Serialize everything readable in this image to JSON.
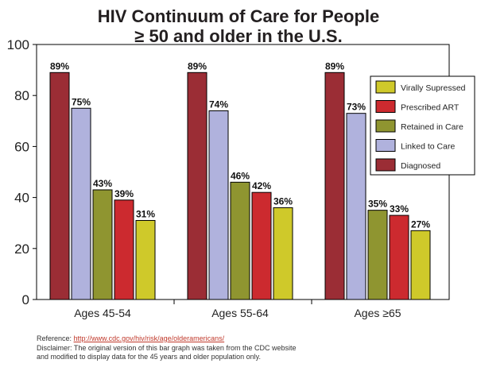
{
  "chart_data": {
    "type": "bar",
    "title": [
      "HIV Continuum of Care for People",
      "≥ 50 and older in the U.S."
    ],
    "xlabel": "",
    "ylabel": "",
    "categories": [
      "Ages 45-54",
      "Ages 55-64",
      "Ages ≥65"
    ],
    "ylim": [
      0,
      100
    ],
    "yticks": [
      0,
      20,
      40,
      60,
      80,
      100
    ],
    "grid": false,
    "legend_position": "right",
    "series": [
      {
        "name": "Diagnosed",
        "color": "#9b2d35",
        "values": [
          89,
          89,
          89
        ]
      },
      {
        "name": "Linked to Care",
        "color": "#b0b2dd",
        "values": [
          75,
          74,
          73
        ]
      },
      {
        "name": "Retained in Care",
        "color": "#8f9530",
        "values": [
          43,
          46,
          35
        ]
      },
      {
        "name": "Prescribed ART",
        "color": "#cc2a2f",
        "values": [
          39,
          42,
          33
        ]
      },
      {
        "name": "Virally Supressed",
        "color": "#cfc92a",
        "values": [
          31,
          36,
          27
        ]
      }
    ],
    "data_labels": [
      [
        "89%",
        "75%",
        "43%",
        "39%",
        "31%"
      ],
      [
        "89%",
        "74%",
        "46%",
        "42%",
        "36%"
      ],
      [
        "89%",
        "73%",
        "35%",
        "33%",
        "27%"
      ]
    ],
    "legend_order": [
      "Virally Supressed",
      "Prescribed ART",
      "Retained in Care",
      "Linked to Care",
      "Diagnosed"
    ]
  },
  "footer": {
    "reference_label": "Reference:",
    "reference_url": "http://www.cdc.gov/hiv/risk/age/olderamericans/",
    "disclaimer_1": "Disclaimer: The original version of this bar graph was taken from the CDC website",
    "disclaimer_2": "and modified to display data for the 45 years and older population only."
  }
}
